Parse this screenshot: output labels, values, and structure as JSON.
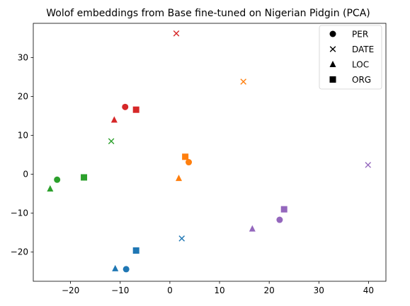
{
  "chart_data": {
    "type": "scatter",
    "title": "Wolof embeddings from Base fine-tuned on Nigerian Pidgin (PCA)",
    "xlabel": "",
    "ylabel": "",
    "xlim": [
      -27.5,
      43.5
    ],
    "ylim": [
      -27.5,
      38.8
    ],
    "xticks": [
      -20,
      -10,
      0,
      10,
      20,
      30,
      40
    ],
    "yticks": [
      -20,
      -10,
      0,
      10,
      20,
      30
    ],
    "grid": false,
    "legend": {
      "placement": "top-right",
      "entries": [
        {
          "label": "PER",
          "marker": "circle"
        },
        {
          "label": "DATE",
          "marker": "x"
        },
        {
          "label": "LOC",
          "marker": "triangle"
        },
        {
          "label": "ORG",
          "marker": "square"
        }
      ]
    },
    "points": [
      {
        "x": 1.3,
        "y": 36.2,
        "marker": "x",
        "color": "#d62728"
      },
      {
        "x": -9.0,
        "y": 17.3,
        "marker": "circle",
        "color": "#d62728"
      },
      {
        "x": -6.8,
        "y": 16.6,
        "marker": "square",
        "color": "#d62728"
      },
      {
        "x": -11.2,
        "y": 14.0,
        "marker": "triangle",
        "color": "#d62728"
      },
      {
        "x": 14.8,
        "y": 23.8,
        "marker": "x",
        "color": "#ff7f0e"
      },
      {
        "x": 3.1,
        "y": 4.5,
        "marker": "square",
        "color": "#ff7f0e"
      },
      {
        "x": 3.8,
        "y": 3.1,
        "marker": "circle",
        "color": "#ff7f0e"
      },
      {
        "x": 1.8,
        "y": -1.0,
        "marker": "triangle",
        "color": "#ff7f0e"
      },
      {
        "x": -11.8,
        "y": 8.5,
        "marker": "x",
        "color": "#2ca02c"
      },
      {
        "x": -17.3,
        "y": -0.8,
        "marker": "square",
        "color": "#2ca02c"
      },
      {
        "x": -22.7,
        "y": -1.4,
        "marker": "circle",
        "color": "#2ca02c"
      },
      {
        "x": -24.1,
        "y": -3.7,
        "marker": "triangle",
        "color": "#2ca02c"
      },
      {
        "x": 2.4,
        "y": -16.5,
        "marker": "x",
        "color": "#1f77b4"
      },
      {
        "x": -6.8,
        "y": -19.6,
        "marker": "square",
        "color": "#1f77b4"
      },
      {
        "x": -11.0,
        "y": -24.2,
        "marker": "triangle",
        "color": "#1f77b4"
      },
      {
        "x": -8.8,
        "y": -24.4,
        "marker": "circle",
        "color": "#1f77b4"
      },
      {
        "x": 39.9,
        "y": 2.4,
        "marker": "x",
        "color": "#9467bd"
      },
      {
        "x": 23.0,
        "y": -9.0,
        "marker": "square",
        "color": "#9467bd"
      },
      {
        "x": 22.1,
        "y": -11.7,
        "marker": "circle",
        "color": "#9467bd"
      },
      {
        "x": 16.6,
        "y": -14.0,
        "marker": "triangle",
        "color": "#9467bd"
      }
    ]
  }
}
